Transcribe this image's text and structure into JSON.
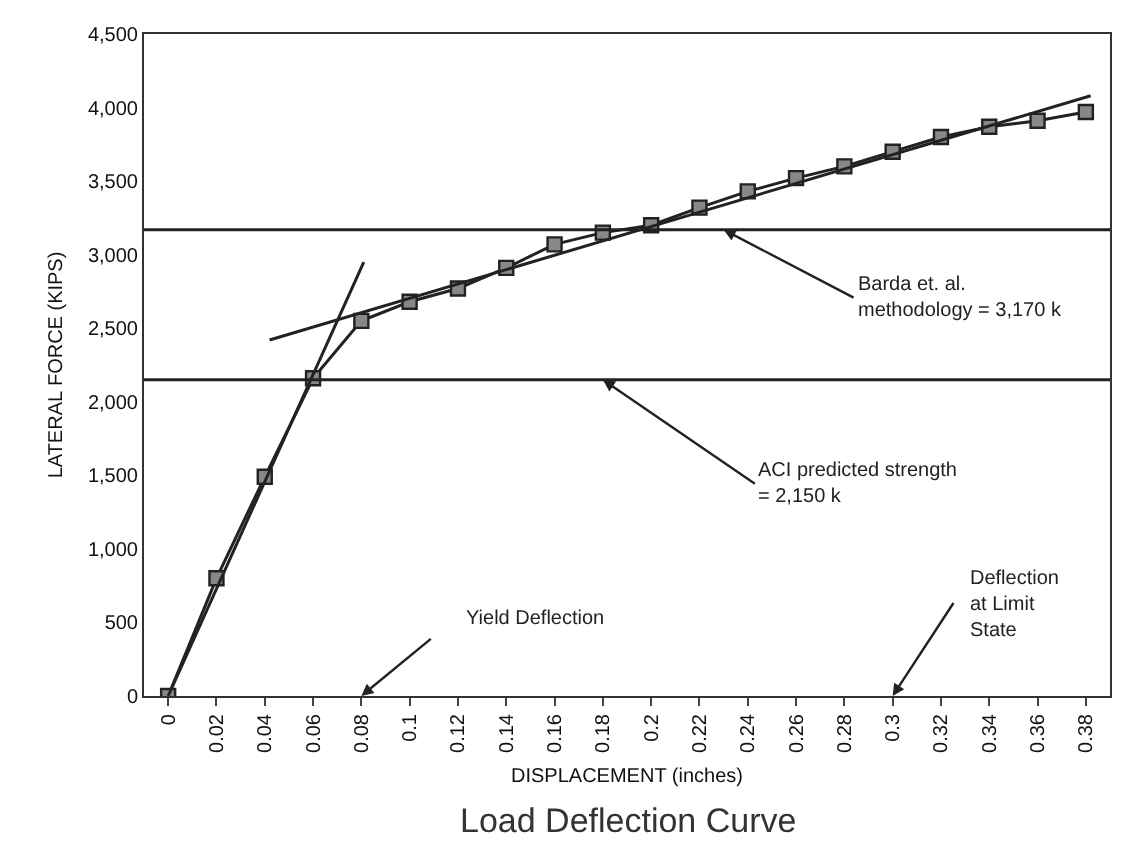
{
  "chart_data": {
    "type": "line",
    "xlabel": "DISPLACEMENT (inches)",
    "ylabel": "LATERAL FORCE (KIPS)",
    "series": [
      {
        "color": "#222222",
        "marker": "square",
        "x": [
          0,
          0.02,
          0.04,
          0.06,
          0.08,
          0.1,
          0.12,
          0.14,
          0.16,
          0.18,
          0.2,
          0.22,
          0.24,
          0.26,
          0.28,
          0.3,
          0.32,
          0.34,
          0.36,
          0.38
        ],
        "values": [
          0,
          800,
          1490,
          2160,
          2550,
          2680,
          2770,
          2910,
          3070,
          3150,
          3200,
          3320,
          3430,
          3520,
          3600,
          3700,
          3800,
          3870,
          3910,
          3970
        ]
      },
      {
        "color": "#222222",
        "marker": "none",
        "x": [
          0,
          0.081
        ],
        "values": [
          0,
          2950
        ]
      },
      {
        "color": "#222222",
        "marker": "none",
        "x": [
          0.042,
          0.382
        ],
        "values": [
          2420,
          4080
        ]
      }
    ],
    "xlim": [
      -0.01,
      0.39
    ],
    "xticks": [
      0,
      0.02,
      0.04,
      0.06,
      0.08,
      0.1,
      0.12,
      0.14,
      0.16,
      0.18,
      0.2,
      0.22,
      0.24,
      0.26,
      0.28,
      0.3,
      0.32,
      0.34,
      0.36,
      0.38
    ],
    "ylim": [
      0,
      4500
    ],
    "yticks": [
      0,
      500,
      {
        "value": 1000,
        "label": "1,000"
      },
      {
        "value": 1500,
        "label": "1,500"
      },
      {
        "value": 2000,
        "label": "2,000"
      },
      {
        "value": 2500,
        "label": "2,500"
      },
      {
        "value": 3000,
        "label": "3,000"
      },
      {
        "value": 3500,
        "label": "3,500"
      },
      {
        "value": 4000,
        "label": "4,000"
      },
      {
        "value": 4500,
        "label": "4,500"
      }
    ],
    "ref_lines": [
      {
        "axis": "y",
        "value": 3170,
        "color": "#222222"
      },
      {
        "axis": "y",
        "value": 2150,
        "color": "#222222"
      }
    ],
    "annotations": [
      {
        "text": "Barda et. al.\nmethodology = 3,170 k",
        "x": 0.23,
        "y": 3170
      },
      {
        "text": "ACI predicted strength\n= 2,150 k",
        "x": 0.18,
        "y": 2150
      },
      "Yield Deflection",
      "Deflection\nat Limit\nState",
      "Load Deflection Curve"
    ],
    "tick_labels": true
  }
}
